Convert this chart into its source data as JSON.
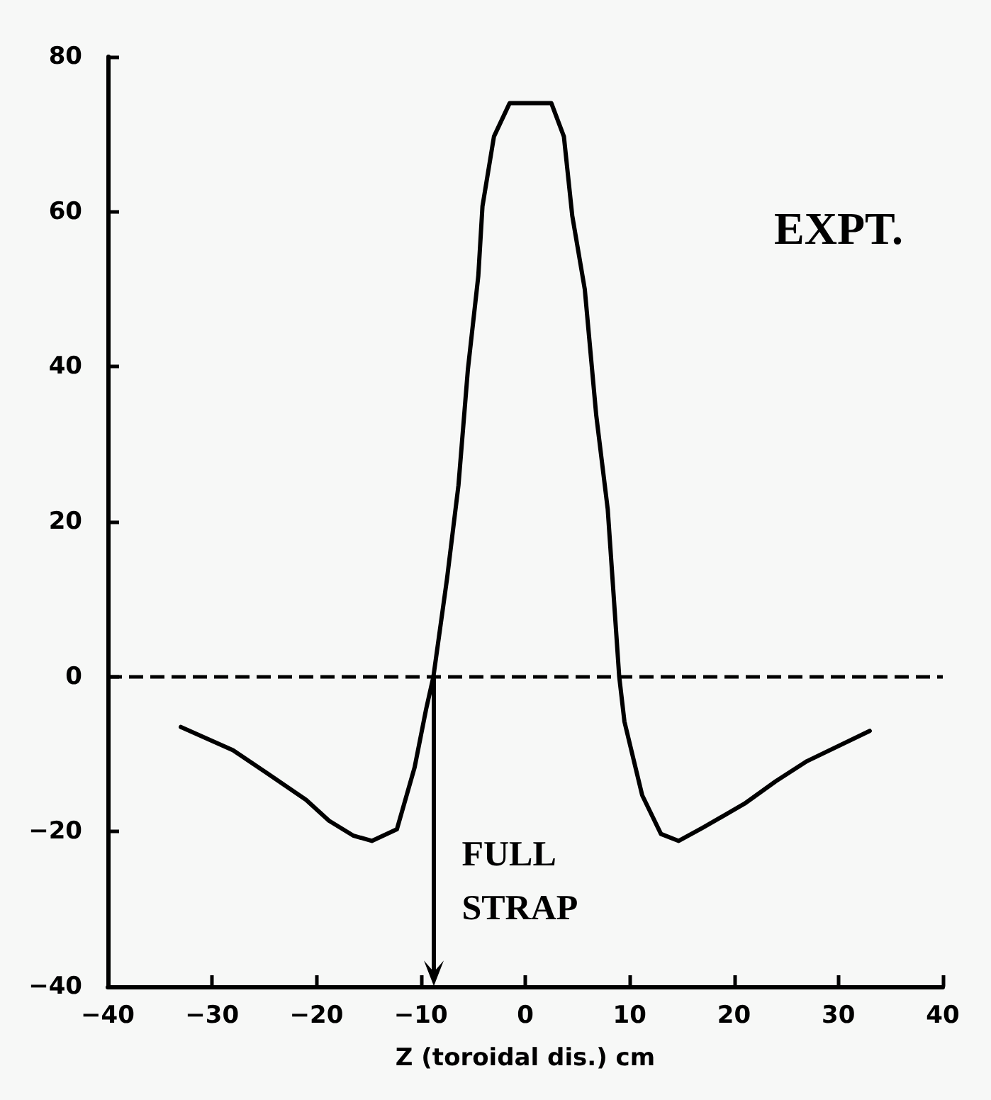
{
  "chart_data": {
    "type": "line",
    "xlabel": "Z (toroidal dis.) cm",
    "x": [
      -33,
      -28,
      -24.8,
      -21,
      -18.8,
      -16.5,
      -14.7,
      -12.3,
      -10.6,
      -9.5,
      -8.8,
      -7.5,
      -6.4,
      -5.5,
      -4.5,
      -4.1,
      -3,
      -1.5,
      2.5,
      3.7,
      4.5,
      5.7,
      6.8,
      7.9,
      9,
      9.5,
      11.2,
      13,
      14.7,
      17,
      21,
      24,
      27,
      33
    ],
    "series": [
      {
        "color": "#000000",
        "values": [
          -6.5,
          -9.5,
          -12.4,
          -15.9,
          -18.6,
          -20.5,
          -21.2,
          -19.7,
          -11.7,
          -4.2,
          0,
          12.6,
          24.7,
          39.6,
          51.7,
          60.7,
          69.7,
          74,
          74,
          69.7,
          59.5,
          50,
          33.7,
          21.6,
          0,
          -5.8,
          -15.3,
          -20.3,
          -21.2,
          -19.5,
          -16.4,
          -13.5,
          -10.9,
          -7
        ]
      }
    ],
    "xlim": [
      -40,
      40
    ],
    "xticks": [
      -40,
      -30,
      -20,
      -10,
      0,
      10,
      20,
      30,
      40
    ],
    "ylim": [
      -40,
      80
    ],
    "yticks": [
      -40,
      -20,
      0,
      20,
      40,
      60,
      80
    ],
    "ref_lines": [
      {
        "axis": "y",
        "value": 0,
        "color": "#000000",
        "line_style": "dashed"
      }
    ],
    "annotations": [
      "EXPT.",
      "FULL STRAP"
    ],
    "grid": false,
    "marker": "none",
    "line_style": "solid"
  }
}
